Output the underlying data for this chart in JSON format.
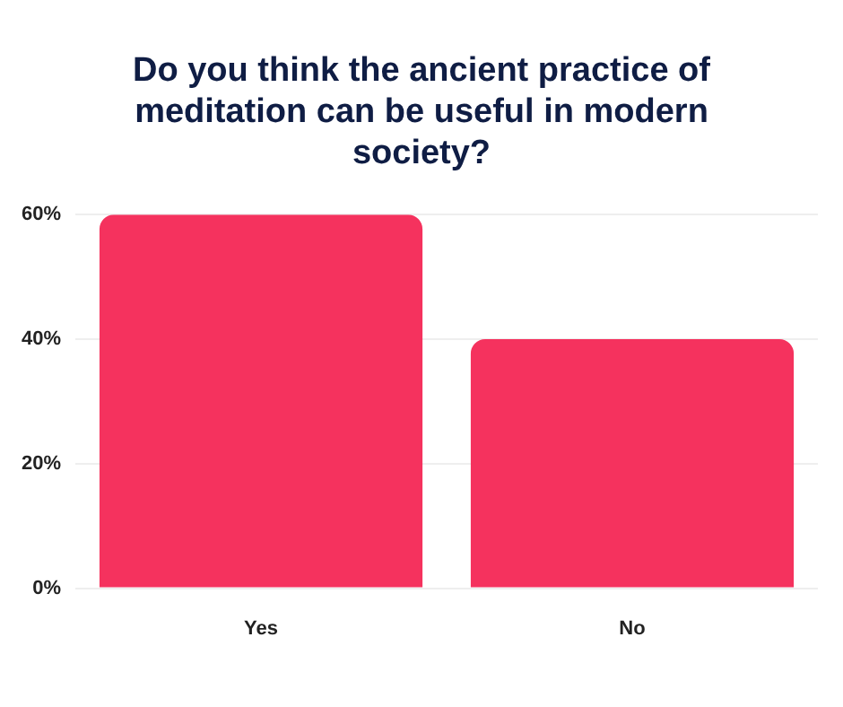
{
  "chart_data": {
    "type": "bar",
    "title": "Do you think the ancient practice of meditation can be useful in modern society?",
    "categories": [
      "Yes",
      "No"
    ],
    "values": [
      60,
      40
    ],
    "color": "#f5325e",
    "ylim": [
      0,
      60
    ],
    "yticks": [
      {
        "value": 0,
        "label": "0%"
      },
      {
        "value": 20,
        "label": "20%"
      },
      {
        "value": 40,
        "label": "40%"
      },
      {
        "value": 60,
        "label": "60%"
      }
    ],
    "grid": "y",
    "legend": false
  }
}
